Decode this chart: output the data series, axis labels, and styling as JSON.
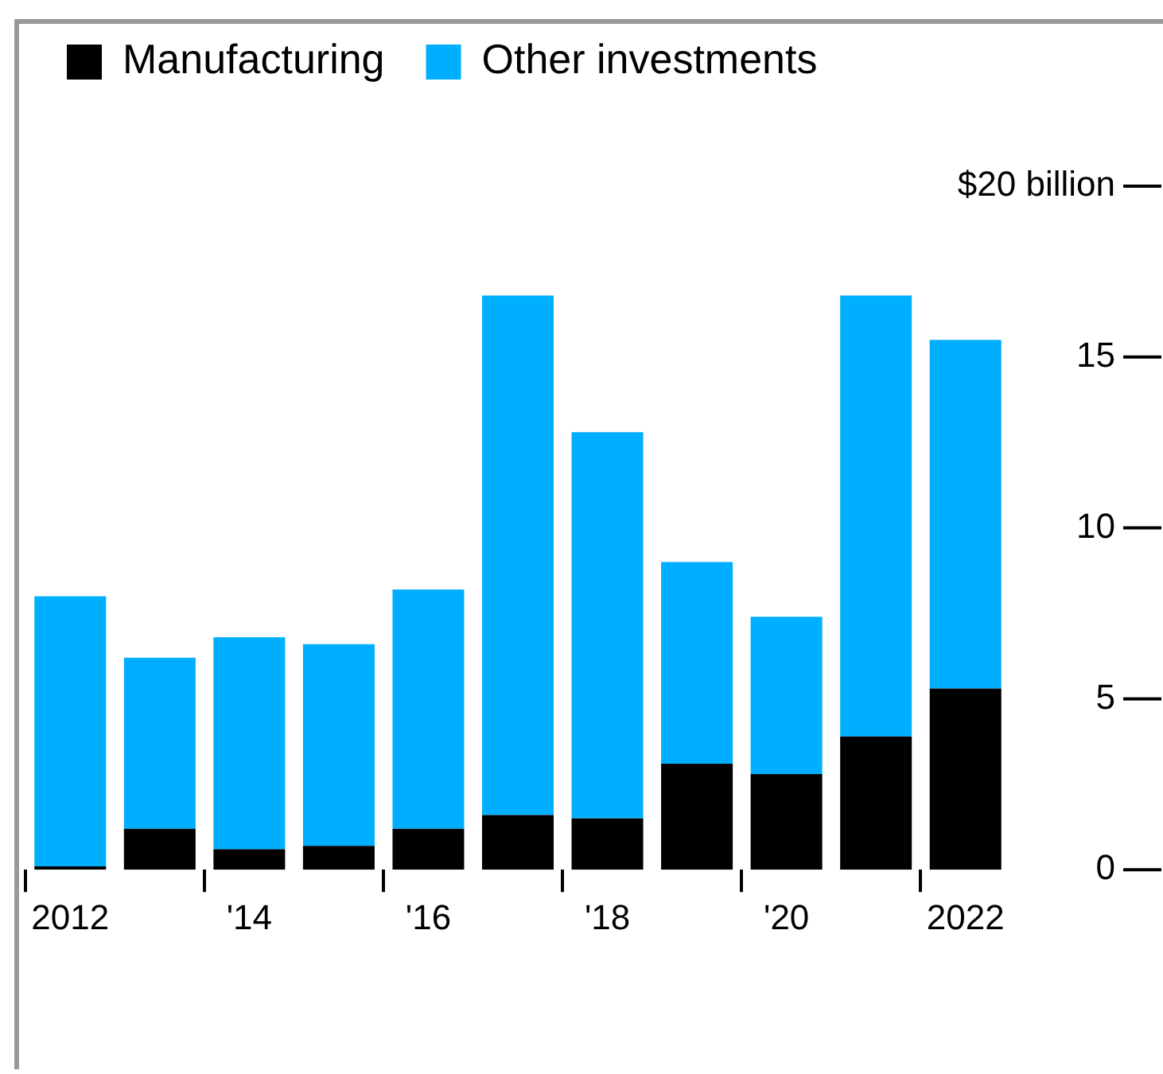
{
  "chart_data": {
    "type": "bar",
    "stacked": true,
    "categories": [
      "2012",
      null,
      "'14",
      null,
      "'16",
      null,
      "'18",
      null,
      "'20",
      null,
      "2022"
    ],
    "series": [
      {
        "name": "Manufacturing",
        "color": "#000000",
        "values": [
          0.1,
          1.2,
          0.6,
          0.7,
          1.2,
          1.6,
          1.5,
          3.1,
          2.8,
          3.9,
          5.3
        ]
      },
      {
        "name": "Other investments",
        "color": "#00aeff",
        "values": [
          7.9,
          5.0,
          6.2,
          5.9,
          7.0,
          15.2,
          11.3,
          5.9,
          4.6,
          12.9,
          10.2
        ]
      }
    ],
    "ylim": [
      0,
      20
    ],
    "yticks": [
      0,
      5,
      10,
      15,
      {
        "value": 20,
        "label": "$20 billion"
      }
    ],
    "grid": false,
    "legend": "top left"
  }
}
